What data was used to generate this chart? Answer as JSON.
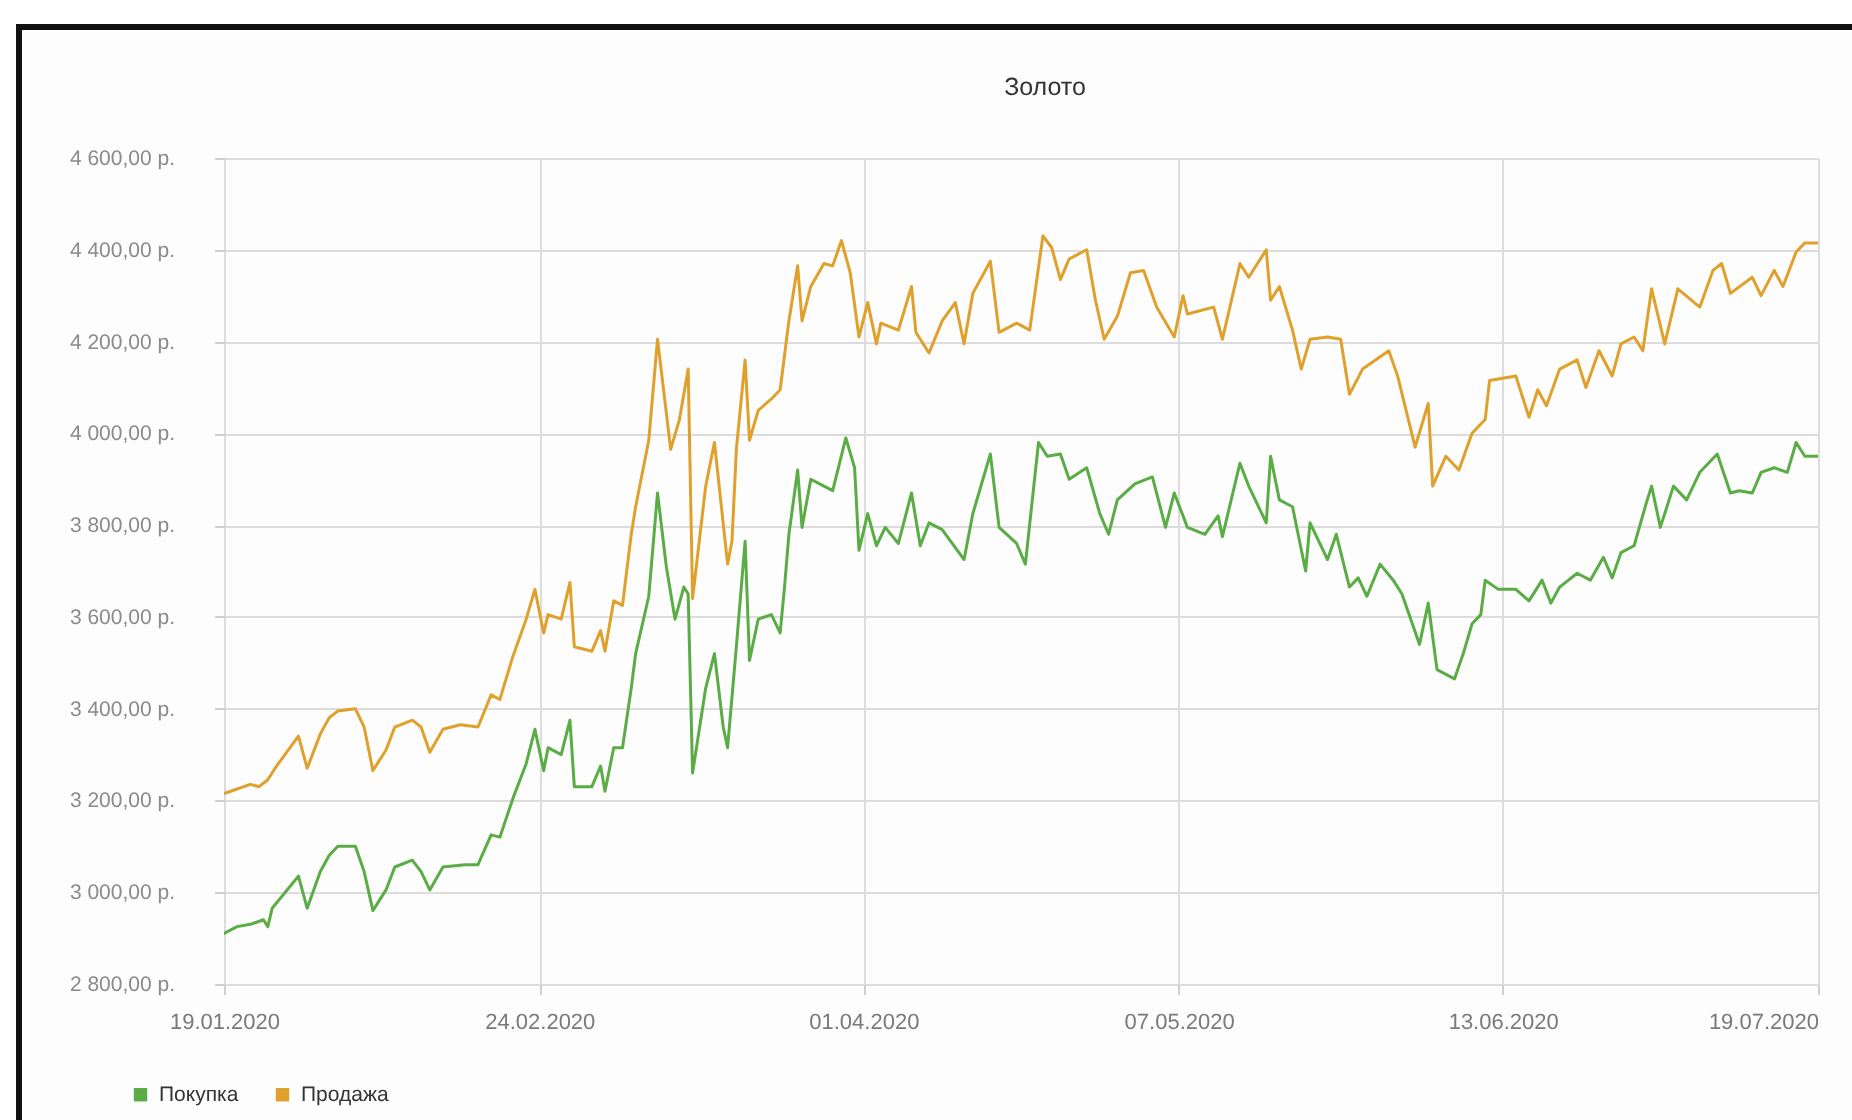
{
  "chart_data": {
    "type": "line",
    "title": "Золото",
    "xlim": [
      "2020-01-19",
      "2020-07-19"
    ],
    "xticks": [
      {
        "value": "2020-01-19",
        "label": "19.01.2020"
      },
      {
        "value": "2020-02-24",
        "label": "24.02.2020"
      },
      {
        "value": "2020-04-01",
        "label": "01.04.2020"
      },
      {
        "value": "2020-05-07",
        "label": "07.05.2020"
      },
      {
        "value": "2020-06-13",
        "label": "13.06.2020"
      },
      {
        "value": "2020-07-19",
        "label": "19.07.2020"
      }
    ],
    "ylim": [
      2800,
      4600
    ],
    "yticks": [
      {
        "value": 2800,
        "label": "2 800,00 р."
      },
      {
        "value": 3000,
        "label": "3 000,00 р."
      },
      {
        "value": 3200,
        "label": "3 200,00 р."
      },
      {
        "value": 3400,
        "label": "3 400,00 р."
      },
      {
        "value": 3600,
        "label": "3 600,00 р."
      },
      {
        "value": 3800,
        "label": "3 800,00 р."
      },
      {
        "value": 4000,
        "label": "4 000,00 р."
      },
      {
        "value": 4200,
        "label": "4 200,00 р."
      },
      {
        "value": 4400,
        "label": "4 400,00 р."
      },
      {
        "value": 4600,
        "label": "4 600,00 р."
      }
    ],
    "grid": true,
    "legend": "bottom left",
    "series": [
      {
        "name": "Покупка",
        "color": "#5aac44",
        "x": [
          "2020-01-19",
          "2020-01-20T12:00",
          "2020-01-22",
          "2020-01-23T12:00",
          "2020-01-24",
          "2020-01-24T12:00",
          "2020-01-27T12:00",
          "2020-01-28T12:00",
          "2020-01-30",
          "2020-01-31",
          "2020-02-01",
          "2020-02-03",
          "2020-02-04",
          "2020-02-05",
          "2020-02-06T12:00",
          "2020-02-07T12:00",
          "2020-02-09T12:00",
          "2020-02-10T12:00",
          "2020-02-11T12:00",
          "2020-02-13",
          "2020-02-15T12:00",
          "2020-02-17",
          "2020-02-18T12:00",
          "2020-02-19T12:00",
          "2020-02-21",
          "2020-02-22T12:00",
          "2020-02-23T12:00",
          "2020-02-24T12:00",
          "2020-02-25",
          "2020-02-26T12:00",
          "2020-02-27T12:00",
          "2020-02-28",
          "2020-03-01",
          "2020-03-02",
          "2020-03-02T12:00",
          "2020-03-03T12:00",
          "2020-03-04T12:00",
          "2020-03-05T12:00",
          "2020-03-06",
          "2020-03-07T12:00",
          "2020-03-08T12:00",
          "2020-03-09T12:00",
          "2020-03-10T12:00",
          "2020-03-11T12:00",
          "2020-03-12",
          "2020-03-12T12:00",
          "2020-03-14",
          "2020-03-15",
          "2020-03-16",
          "2020-03-16T12:00",
          "2020-03-17T12:00",
          "2020-03-18T12:00",
          "2020-03-19",
          "2020-03-20",
          "2020-03-21T12:00",
          "2020-03-22T12:00",
          "2020-03-23",
          "2020-03-23T12:00",
          "2020-03-24T12:00",
          "2020-03-25",
          "2020-03-26",
          "2020-03-27T12:00",
          "2020-03-28T12:00",
          "2020-03-30",
          "2020-03-31",
          "2020-03-31T12:00",
          "2020-04-01T12:00",
          "2020-04-02T12:00",
          "2020-04-03T12:00",
          "2020-04-05",
          "2020-04-06T12:00",
          "2020-04-07T12:00",
          "2020-04-08T12:00",
          "2020-04-10",
          "2020-04-12T12:00",
          "2020-04-13T12:00",
          "2020-04-15T12:00",
          "2020-04-16T12:00",
          "2020-04-18T12:00",
          "2020-04-19T12:00",
          "2020-04-21",
          "2020-04-22",
          "2020-04-23T12:00",
          "2020-04-24T12:00",
          "2020-04-26T12:00",
          "2020-04-28",
          "2020-04-29",
          "2020-04-30",
          "2020-05-02",
          "2020-05-04",
          "2020-05-05T12:00",
          "2020-05-06T12:00",
          "2020-05-08",
          "2020-05-10",
          "2020-05-11T12:00",
          "2020-05-12",
          "2020-05-14",
          "2020-05-15",
          "2020-05-17",
          "2020-05-17T12:00",
          "2020-05-18T12:00",
          "2020-05-20",
          "2020-05-21T12:00",
          "2020-05-22",
          "2020-05-24",
          "2020-05-25",
          "2020-05-26T12:00",
          "2020-05-27T12:00",
          "2020-05-28T12:00",
          "2020-05-30",
          "2020-05-31T12:00",
          "2020-06-01T12:00",
          "2020-06-03T12:00",
          "2020-06-04T12:00",
          "2020-06-05T12:00",
          "2020-06-07T12:00",
          "2020-06-08T12:00",
          "2020-06-09T12:00",
          "2020-06-10T12:00",
          "2020-06-11",
          "2020-06-12T12:00",
          "2020-06-14T12:00",
          "2020-06-16",
          "2020-06-17T12:00",
          "2020-06-18T12:00",
          "2020-06-19T12:00",
          "2020-06-21T12:00",
          "2020-06-23",
          "2020-06-24T12:00",
          "2020-06-25T12:00",
          "2020-06-26T12:00",
          "2020-06-28",
          "2020-06-29T12:00",
          "2020-06-30",
          "2020-07-01",
          "2020-07-02T12:00",
          "2020-07-04",
          "2020-07-05T12:00",
          "2020-07-07T12:00",
          "2020-07-09",
          "2020-07-10",
          "2020-07-11T12:00",
          "2020-07-12T12:00",
          "2020-07-14",
          "2020-07-15T12:00",
          "2020-07-16T12:00",
          "2020-07-17T12:00",
          "2020-07-19"
        ],
        "values": [
          2910,
          2925,
          2930,
          2940,
          2925,
          2965,
          3035,
          2965,
          3045,
          3080,
          3100,
          3100,
          3045,
          2960,
          3005,
          3055,
          3070,
          3045,
          3005,
          3055,
          3060,
          3060,
          3125,
          3120,
          3205,
          3280,
          3355,
          3265,
          3315,
          3300,
          3375,
          3230,
          3230,
          3275,
          3220,
          3315,
          3315,
          3445,
          3520,
          3645,
          3870,
          3710,
          3595,
          3665,
          3650,
          3260,
          3445,
          3520,
          3360,
          3315,
          3535,
          3765,
          3505,
          3595,
          3605,
          3565,
          3665,
          3780,
          3920,
          3795,
          3900,
          3885,
          3875,
          3990,
          3925,
          3745,
          3825,
          3755,
          3795,
          3760,
          3870,
          3755,
          3805,
          3790,
          3725,
          3825,
          3955,
          3795,
          3760,
          3715,
          3980,
          3950,
          3955,
          3900,
          3925,
          3825,
          3780,
          3855,
          3890,
          3905,
          3795,
          3870,
          3795,
          3780,
          3820,
          3775,
          3935,
          3885,
          3805,
          3950,
          3855,
          3840,
          3700,
          3805,
          3725,
          3780,
          3665,
          3685,
          3645,
          3715,
          3680,
          3650,
          3540,
          3630,
          3485,
          3465,
          3520,
          3585,
          3605,
          3680,
          3660,
          3660,
          3635,
          3680,
          3630,
          3665,
          3695,
          3680,
          3730,
          3685,
          3740,
          3755,
          3855,
          3885,
          3795,
          3885,
          3855,
          3915,
          3955,
          3870,
          3875,
          3870,
          3915,
          3925,
          3915,
          3980,
          3950,
          3950
        ]
      },
      {
        "name": "Продажа",
        "color": "#e0a02c",
        "x": [
          "2020-01-19",
          "2020-01-20T12:00",
          "2020-01-22",
          "2020-01-23",
          "2020-01-24",
          "2020-01-25",
          "2020-01-27T12:00",
          "2020-01-28T12:00",
          "2020-01-30",
          "2020-01-31",
          "2020-02-01",
          "2020-02-03",
          "2020-02-04",
          "2020-02-05",
          "2020-02-06T12:00",
          "2020-02-07T12:00",
          "2020-02-09T12:00",
          "2020-02-10T12:00",
          "2020-02-11T12:00",
          "2020-02-13",
          "2020-02-15",
          "2020-02-17",
          "2020-02-18T12:00",
          "2020-02-19T12:00",
          "2020-02-21",
          "2020-02-22T12:00",
          "2020-02-23T12:00",
          "2020-02-24T12:00",
          "2020-02-25",
          "2020-02-26T12:00",
          "2020-02-27T12:00",
          "2020-02-28",
          "2020-03-01",
          "2020-03-02",
          "2020-03-02T12:00",
          "2020-03-03T12:00",
          "2020-03-04T12:00",
          "2020-03-05T12:00",
          "2020-03-06",
          "2020-03-07T12:00",
          "2020-03-08T12:00",
          "2020-03-09T12:00",
          "2020-03-10",
          "2020-03-11",
          "2020-03-12",
          "2020-03-12T12:00",
          "2020-03-14",
          "2020-03-15",
          "2020-03-16T12:00",
          "2020-03-17",
          "2020-03-17T12:00",
          "2020-03-18T12:00",
          "2020-03-19",
          "2020-03-20",
          "2020-03-21T12:00",
          "2020-03-22T12:00",
          "2020-03-23T12:00",
          "2020-03-24T12:00",
          "2020-03-25",
          "2020-03-26",
          "2020-03-27T12:00",
          "2020-03-28T12:00",
          "2020-03-29T12:00",
          "2020-03-30T12:00",
          "2020-03-31T12:00",
          "2020-04-01T12:00",
          "2020-04-02T12:00",
          "2020-04-03",
          "2020-04-05",
          "2020-04-06T12:00",
          "2020-04-07",
          "2020-04-08T12:00",
          "2020-04-10",
          "2020-04-11T12:00",
          "2020-04-12T12:00",
          "2020-04-13T12:00",
          "2020-04-15T12:00",
          "2020-04-16T12:00",
          "2020-04-18T12:00",
          "2020-04-20",
          "2020-04-21T12:00",
          "2020-04-22T12:00",
          "2020-04-23T12:00",
          "2020-04-24T12:00",
          "2020-04-26T12:00",
          "2020-04-27T12:00",
          "2020-04-28T12:00",
          "2020-04-30",
          "2020-05-01T12:00",
          "2020-05-03",
          "2020-05-04T12:00",
          "2020-05-06T12:00",
          "2020-05-07T12:00",
          "2020-05-08",
          "2020-05-11",
          "2020-05-12",
          "2020-05-14",
          "2020-05-15",
          "2020-05-17",
          "2020-05-17T12:00",
          "2020-05-18T12:00",
          "2020-05-20",
          "2020-05-21",
          "2020-05-22",
          "2020-05-24",
          "2020-05-25T12:00",
          "2020-05-26T12:00",
          "2020-05-28",
          "2020-05-31",
          "2020-06-01",
          "2020-06-03",
          "2020-06-04T12:00",
          "2020-06-05",
          "2020-06-06T12:00",
          "2020-06-08",
          "2020-06-09T12:00",
          "2020-06-11",
          "2020-06-11T12:00",
          "2020-06-14T12:00",
          "2020-06-16",
          "2020-06-17",
          "2020-06-18",
          "2020-06-19T12:00",
          "2020-06-21T12:00",
          "2020-06-22T12:00",
          "2020-06-24",
          "2020-06-25T12:00",
          "2020-06-26T12:00",
          "2020-06-28",
          "2020-06-29",
          "2020-06-30",
          "2020-07-01T12:00",
          "2020-07-03",
          "2020-07-05T12:00",
          "2020-07-07",
          "2020-07-08",
          "2020-07-09",
          "2020-07-11T12:00",
          "2020-07-12T12:00",
          "2020-07-14",
          "2020-07-15",
          "2020-07-16T12:00",
          "2020-07-17T12:00",
          "2020-07-19"
        ],
        "values": [
          3215,
          3225,
          3235,
          3230,
          3245,
          3275,
          3340,
          3270,
          3345,
          3380,
          3395,
          3400,
          3360,
          3265,
          3310,
          3360,
          3375,
          3360,
          3305,
          3355,
          3365,
          3360,
          3430,
          3420,
          3515,
          3595,
          3660,
          3565,
          3605,
          3595,
          3675,
          3535,
          3525,
          3570,
          3525,
          3635,
          3625,
          3780,
          3840,
          3985,
          4205,
          4045,
          3965,
          4030,
          4140,
          3640,
          3885,
          3980,
          3715,
          3765,
          3965,
          4160,
          3985,
          4050,
          4075,
          4095,
          4245,
          4365,
          4245,
          4320,
          4370,
          4365,
          4420,
          4350,
          4210,
          4285,
          4195,
          4240,
          4225,
          4320,
          4220,
          4175,
          4245,
          4285,
          4195,
          4305,
          4375,
          4220,
          4240,
          4225,
          4430,
          4405,
          4335,
          4380,
          4400,
          4290,
          4205,
          4255,
          4350,
          4355,
          4275,
          4210,
          4300,
          4260,
          4275,
          4205,
          4370,
          4340,
          4400,
          4290,
          4320,
          4225,
          4140,
          4205,
          4210,
          4205,
          4085,
          4140,
          4180,
          4125,
          3970,
          4065,
          3885,
          3950,
          3920,
          4000,
          4030,
          4115,
          4125,
          4035,
          4095,
          4060,
          4140,
          4160,
          4100,
          4180,
          4125,
          4195,
          4210,
          4180,
          4315,
          4195,
          4315,
          4275,
          4355,
          4370,
          4305,
          4340,
          4300,
          4355,
          4320,
          4395,
          4415,
          4415
        ]
      }
    ]
  }
}
